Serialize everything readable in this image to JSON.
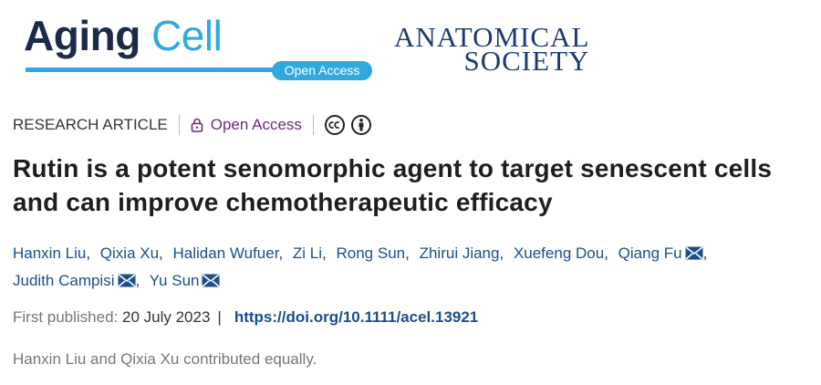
{
  "logo": {
    "word1": "Aging",
    "word2": "Cell",
    "badge": "Open Access"
  },
  "society": {
    "line1": "ANATOMICAL",
    "line2": "SOCIETY"
  },
  "article_type": "RESEARCH ARTICLE",
  "access": "Open Access",
  "title_lines": [
    "Rutin is a potent senomorphic agent to target senescent cells",
    "and can improve chemotherapeutic efficacy"
  ],
  "author_separator": ",",
  "authors": [
    {
      "name": "Hanxin Liu",
      "email": false
    },
    {
      "name": "Qixia Xu",
      "email": false
    },
    {
      "name": "Halidan Wufuer",
      "email": false
    },
    {
      "name": "Zi Li",
      "email": false
    },
    {
      "name": "Rong Sun",
      "email": false
    },
    {
      "name": "Zhirui Jiang",
      "email": false
    },
    {
      "name": "Xuefeng Dou",
      "email": false
    },
    {
      "name": "Qiang Fu",
      "email": true
    },
    {
      "name": "Judith Campisi",
      "email": true
    },
    {
      "name": "Yu Sun",
      "email": true
    }
  ],
  "published": {
    "label": "First published:",
    "date": "20 July 2023",
    "separator": "|",
    "doi": "https://doi.org/10.1111/acel.13921"
  },
  "note": "Hanxin Liu and Qixia Xu contributed equally."
}
